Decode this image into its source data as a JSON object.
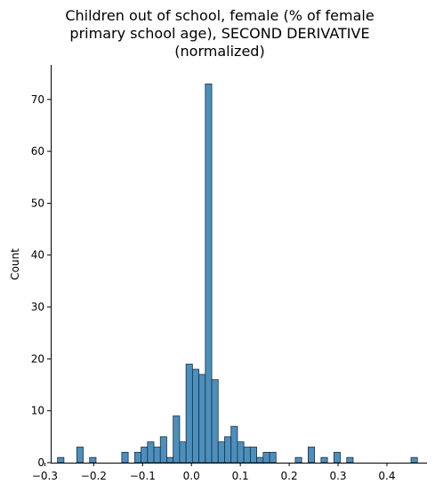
{
  "chart_data": {
    "type": "bar",
    "title_lines": [
      "Children out of school, female (% of female",
      "primary school age), SECOND DERIVATIVE",
      "(normalized)"
    ],
    "xlabel": "",
    "ylabel": "Count",
    "xlim": [
      -0.288,
      0.482
    ],
    "ylim": [
      0,
      76.65
    ],
    "x_ticks": [
      -0.3,
      -0.2,
      -0.1,
      0.0,
      0.1,
      0.2,
      0.3,
      0.4
    ],
    "y_ticks": [
      0,
      10,
      20,
      30,
      40,
      50,
      60,
      70
    ],
    "bin_width": 0.01315,
    "bar_color": "#4c8fbd",
    "edge_color": "#1f2f3d",
    "bins": [
      {
        "x": -0.2675,
        "count": 1
      },
      {
        "x": -0.2281,
        "count": 3
      },
      {
        "x": -0.2018,
        "count": 1
      },
      {
        "x": -0.136,
        "count": 2
      },
      {
        "x": -0.1097,
        "count": 2
      },
      {
        "x": -0.0965,
        "count": 3
      },
      {
        "x": -0.0834,
        "count": 4
      },
      {
        "x": -0.0702,
        "count": 3
      },
      {
        "x": -0.0571,
        "count": 5
      },
      {
        "x": -0.0439,
        "count": 1
      },
      {
        "x": -0.0308,
        "count": 9
      },
      {
        "x": -0.0176,
        "count": 4
      },
      {
        "x": -0.0045,
        "count": 19
      },
      {
        "x": 0.0087,
        "count": 18
      },
      {
        "x": 0.0218,
        "count": 17
      },
      {
        "x": 0.035,
        "count": 73
      },
      {
        "x": 0.0481,
        "count": 16
      },
      {
        "x": 0.0613,
        "count": 4
      },
      {
        "x": 0.0744,
        "count": 5
      },
      {
        "x": 0.0876,
        "count": 7
      },
      {
        "x": 0.1007,
        "count": 4
      },
      {
        "x": 0.1139,
        "count": 3
      },
      {
        "x": 0.127,
        "count": 3
      },
      {
        "x": 0.1402,
        "count": 1
      },
      {
        "x": 0.1533,
        "count": 2
      },
      {
        "x": 0.1665,
        "count": 2
      },
      {
        "x": 0.2191,
        "count": 1
      },
      {
        "x": 0.2454,
        "count": 3
      },
      {
        "x": 0.2717,
        "count": 1
      },
      {
        "x": 0.298,
        "count": 2
      },
      {
        "x": 0.3243,
        "count": 1
      },
      {
        "x": 0.4558,
        "count": 1
      }
    ]
  }
}
